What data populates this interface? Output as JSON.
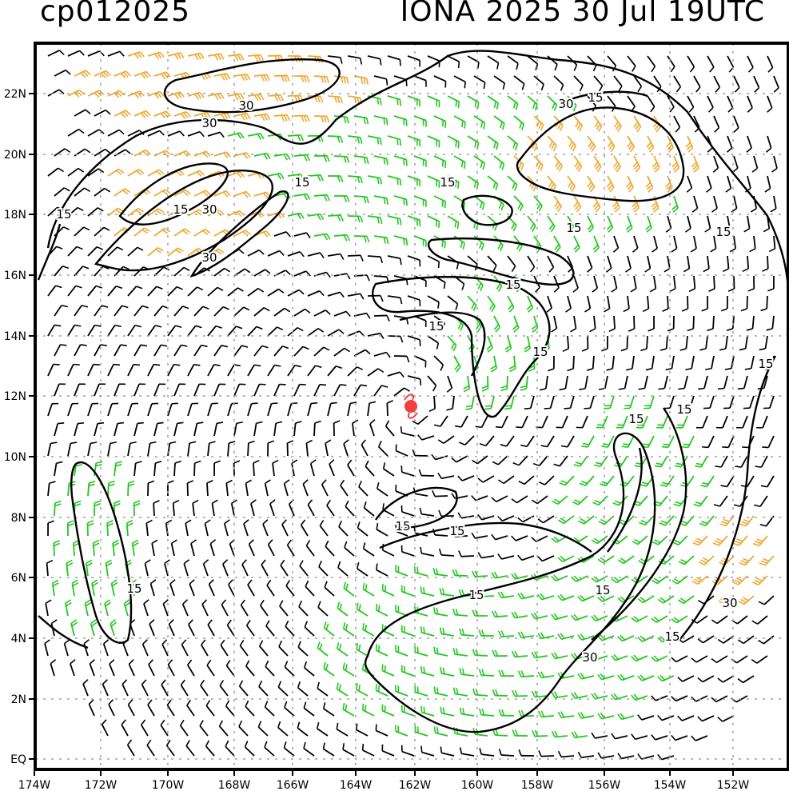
{
  "header": {
    "left": "cp012025",
    "right": "IONA 2025 30 Jul 19UTC"
  },
  "axes": {
    "lat_labels": [
      "22N",
      "20N",
      "18N",
      "16N",
      "14N",
      "12N",
      "10N",
      "8N",
      "6N",
      "4N",
      "2N",
      "EQ"
    ],
    "lon_labels": [
      "174W",
      "172W",
      "170W",
      "168W",
      "166W",
      "164W",
      "162W",
      "160W",
      "158W",
      "156W",
      "154W",
      "152W"
    ]
  },
  "contour_labels": [
    "30",
    "30",
    "30",
    "15",
    "15",
    "30",
    "15",
    "15",
    "15",
    "15",
    "15",
    "15",
    "15",
    "15",
    "15",
    "15",
    "15",
    "15",
    "15",
    "15",
    "30",
    "15",
    "15",
    "30",
    "30",
    "15"
  ],
  "storm": {
    "name": "IONA",
    "marker_color": "#f04040"
  },
  "colors": {
    "calm_barb": "#000000",
    "mid_barb": "#22c81e",
    "strong_barb": "#f0a830",
    "extreme_barb": "#f07820",
    "grid": "#a0a0a0"
  }
}
